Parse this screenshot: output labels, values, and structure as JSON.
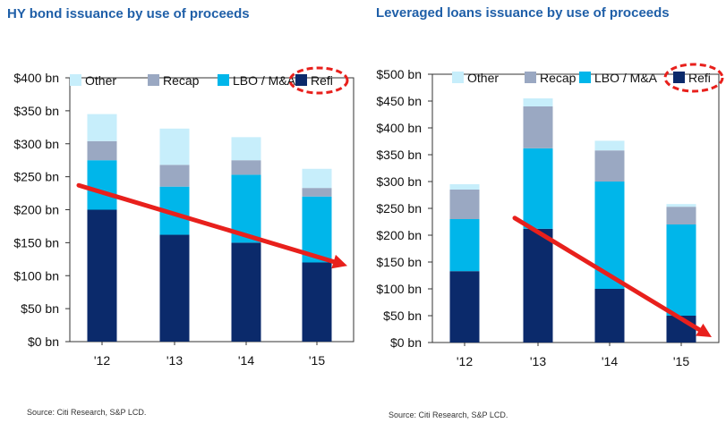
{
  "chart_data": [
    {
      "type": "bar",
      "stacked": true,
      "title": "HY bond issuance by use of proceeds",
      "categories": [
        "'12",
        "'13",
        "'14",
        "'15"
      ],
      "series": [
        {
          "name": "Refi",
          "values": [
            200,
            162,
            150,
            120
          ],
          "color": "#0b2a6b"
        },
        {
          "name": "LBO / M&A",
          "values": [
            75,
            73,
            103,
            100
          ],
          "color": "#00b6ea"
        },
        {
          "name": "Recap",
          "values": [
            29,
            33,
            22,
            13
          ],
          "color": "#9aa8c2"
        },
        {
          "name": "Other",
          "values": [
            41,
            55,
            35,
            29
          ],
          "color": "#c7eefb"
        }
      ],
      "ylim": [
        0,
        400
      ],
      "yticks": [
        0,
        50,
        100,
        150,
        200,
        250,
        300,
        350,
        400
      ],
      "ytick_labels": [
        "$0 bn",
        "$50 bn",
        "$100 bn",
        "$150 bn",
        "$200 bn",
        "$250 bn",
        "$300 bn",
        "$350 bn",
        "$400 bn"
      ],
      "legend_order": [
        "Other",
        "Recap",
        "LBO / M&A",
        "Refi"
      ],
      "legend_position": "top",
      "highlighted_legend_entry": "Refi",
      "trend_arrow": {
        "from": [
          "'12",
          237
        ],
        "to": [
          "'15",
          115
        ],
        "color": "#e8201c",
        "direction": "down"
      },
      "source": "Source: Citi Research, S&P LCD."
    },
    {
      "type": "bar",
      "stacked": true,
      "title": "Leveraged loans issuance by use of proceeds",
      "categories": [
        "'12",
        "'13",
        "'14",
        "'15"
      ],
      "series": [
        {
          "name": "Refi",
          "values": [
            133,
            212,
            100,
            50
          ],
          "color": "#0b2a6b"
        },
        {
          "name": "LBO / M&A",
          "values": [
            97,
            150,
            200,
            170
          ],
          "color": "#00b6ea"
        },
        {
          "name": "Recap",
          "values": [
            55,
            78,
            58,
            33
          ],
          "color": "#9aa8c2"
        },
        {
          "name": "Other",
          "values": [
            10,
            15,
            18,
            5
          ],
          "color": "#c7eefb"
        }
      ],
      "ylim": [
        0,
        500
      ],
      "yticks": [
        0,
        50,
        100,
        150,
        200,
        250,
        300,
        350,
        400,
        450,
        500
      ],
      "ytick_labels": [
        "$0 bn",
        "$50 bn",
        "$100 bn",
        "$150 bn",
        "$200 bn",
        "$250 bn",
        "$300 bn",
        "$350 bn",
        "$400 bn",
        "$450 bn",
        "$500 bn"
      ],
      "legend_order": [
        "Other",
        "Recap",
        "LBO / M&A",
        "Refi"
      ],
      "legend_position": "top",
      "highlighted_legend_entry": "Refi",
      "trend_arrow": {
        "from": [
          "'13",
          232
        ],
        "to": [
          "'15",
          10
        ],
        "color": "#e8201c",
        "direction": "down"
      },
      "source": "Source: Citi Research, S&P LCD."
    }
  ]
}
